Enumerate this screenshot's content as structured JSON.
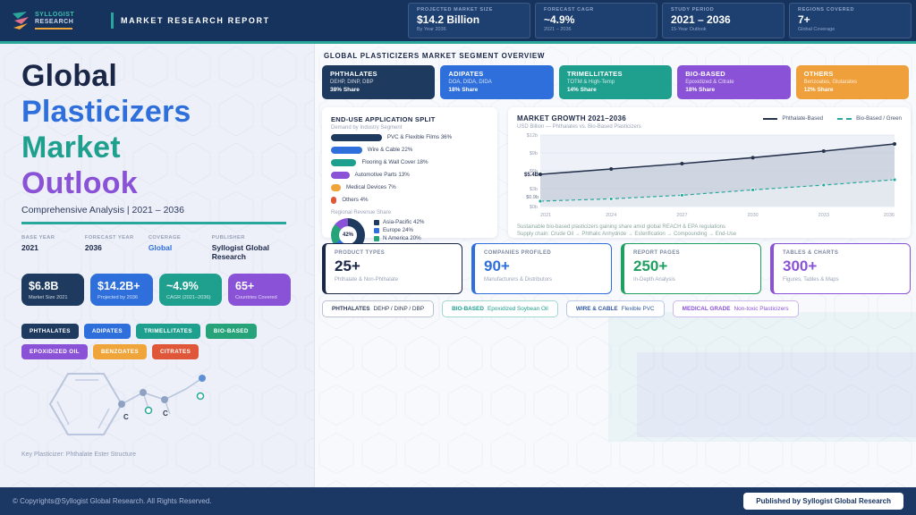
{
  "palette": {
    "navy": "#1e3a5f",
    "blue": "#2f6fdb",
    "teal": "#1fa08f",
    "green": "#27a37a",
    "purple": "#8a52d7",
    "amber": "#f0a53a",
    "orange": "#f0a03a",
    "red": "#e05638",
    "accent": "#2aa79b",
    "header_bg": "#16335e"
  },
  "header": {
    "logo": {
      "line1": "SYLLOGIST",
      "line2": "RESEARCH"
    },
    "report_label": "MARKET RESEARCH REPORT",
    "cards": [
      {
        "label": "PROJECTED MARKET SIZE",
        "value": "$14.2 Billion",
        "sub": "By Year 2036"
      },
      {
        "label": "FORECAST CAGR",
        "value": "~4.9%",
        "sub": "2021 – 2036"
      },
      {
        "label": "STUDY PERIOD",
        "value": "2021 – 2036",
        "sub": "15-Year Outlook"
      },
      {
        "label": "REGIONS COVERED",
        "value": "7+",
        "sub": "Global Coverage"
      }
    ]
  },
  "hero": {
    "title_lines": [
      {
        "text": "Global",
        "color": "#1b2747"
      },
      {
        "text": "Plasticizers",
        "color": "#2f6fdb"
      },
      {
        "text": "Market",
        "color": "#1fa08f"
      },
      {
        "text": "Outlook",
        "color": "#8a52d7"
      }
    ],
    "subtitle": "Comprehensive Analysis  |  2021 – 2036",
    "meta": [
      {
        "label": "BASE YEAR",
        "value": "2021"
      },
      {
        "label": "FORECAST YEAR",
        "value": "2036"
      },
      {
        "label": "COVERAGE",
        "value": "Global"
      },
      {
        "label": "PUBLISHER",
        "value": "Syllogist Global Research"
      }
    ],
    "stats": [
      {
        "value": "$6.8B",
        "label": "Market Size 2021",
        "bg": "#1e3a5f"
      },
      {
        "value": "$14.2B+",
        "label": "Projected by 2036",
        "bg": "#2f6fdb"
      },
      {
        "value": "~4.9%",
        "label": "CAGR (2021–2036)",
        "bg": "#1fa08f"
      },
      {
        "value": "65+",
        "label": "Countries Covered",
        "bg": "#8a52d7"
      }
    ],
    "tags": [
      {
        "label": "PHTHALATES",
        "bg": "#1e3a5f"
      },
      {
        "label": "ADIPATES",
        "bg": "#2f6fdb"
      },
      {
        "label": "TRIMELLITATES",
        "bg": "#1fa08f"
      },
      {
        "label": "BIO-BASED",
        "bg": "#27a37a"
      },
      {
        "label": "EPOXIDIZED OIL",
        "bg": "#8a52d7"
      },
      {
        "label": "BENZOATES",
        "bg": "#f0a53a"
      },
      {
        "label": "CITRATES",
        "bg": "#e05638"
      }
    ],
    "molecule": {
      "caption": "Key Plasticizer: Phthalate Ester Structure",
      "atom1": "C",
      "atom2": "C"
    }
  },
  "overview": {
    "section_title": "GLOBAL PLASTICIZERS MARKET SEGMENT OVERVIEW",
    "segments": [
      {
        "title": "PHTHALATES",
        "sub": "DEHP, DINP, DBP",
        "share": "38% Share",
        "bg": "#1e3a5f"
      },
      {
        "title": "ADIPATES",
        "sub": "DOA, DIDA, DIDA",
        "share": "18% Share",
        "bg": "#2f6fdb"
      },
      {
        "title": "TRIMELLITATES",
        "sub": "TOTM & High-Temp",
        "share": "14% Share",
        "bg": "#1fa08f"
      },
      {
        "title": "BIO-BASED",
        "sub": "Epoxidized & Citrate",
        "share": "18% Share",
        "bg": "#8a52d7"
      },
      {
        "title": "OTHERS",
        "sub": "Benzoates, Glutarates",
        "share": "12% Share",
        "bg": "#f0a03a"
      }
    ]
  },
  "chart_data": [
    {
      "type": "bar",
      "title": "END-USE APPLICATION SPLIT",
      "subtitle": "Demand by Industry Segment",
      "categories": [
        "PVC & Flexible Films",
        "Wire & Cable",
        "Flooring & Wall Cover",
        "Automotive Parts",
        "Medical Devices",
        "Others"
      ],
      "values": [
        36,
        22,
        18,
        13,
        7,
        4
      ],
      "unit": "%",
      "colors": [
        "#1e3a5f",
        "#2f6fdb",
        "#1fa08f",
        "#8a52d7",
        "#f0a53a",
        "#e05638"
      ],
      "orientation": "horizontal"
    },
    {
      "type": "pie",
      "title": "Regional Revenue Share",
      "center_label": "42%",
      "categories": [
        "Asia-Pacific",
        "Europe",
        "N America",
        "Rest"
      ],
      "values": [
        42,
        24,
        20,
        14
      ],
      "unit": "%",
      "colors": [
        "#1e3a5f",
        "#2f6fdb",
        "#27a37a",
        "#8a52d7"
      ],
      "legend_position": "right"
    },
    {
      "type": "line",
      "title": "MARKET GROWTH 2021–2036",
      "subtitle": "USD Billion — Phthalates vs. Bio-Based Plasticizers",
      "x": [
        2021,
        2024,
        2027,
        2030,
        2033,
        2036
      ],
      "series": [
        {
          "name": "Phthalate-Based",
          "values": [
            5.4,
            6.3,
            7.2,
            8.2,
            9.3,
            10.5
          ],
          "color": "#26334d",
          "style": "solid",
          "area": true,
          "start_label": "$5.4B"
        },
        {
          "name": "Bio-Based / Green",
          "values": [
            0.9,
            1.3,
            1.9,
            2.8,
            3.6,
            4.5
          ],
          "color": "#2aa79b",
          "style": "dashed",
          "area": false,
          "start_label": "$0.9b"
        }
      ],
      "ylim": [
        0,
        12
      ],
      "ytick_values": [
        0,
        3,
        6,
        9,
        12
      ],
      "ytick_labels": [
        "$0b",
        "$3b",
        "$6b",
        "$9b",
        "$12b"
      ],
      "grid": true,
      "legend_position": "top-right",
      "notes": [
        "Sustainable bio-based plasticizers gaining share amid global REACH & EPA regulations",
        "Supply chain: Crude Oil → Phthalic Anhydride → Esterification → Compounding → End-Use"
      ]
    }
  ],
  "report_stats": [
    {
      "label": "PRODUCT TYPES",
      "value": "25+",
      "sub": "Phthalate & Non-Phthalate",
      "color": "#1b2747"
    },
    {
      "label": "COMPANIES PROFILED",
      "value": "90+",
      "sub": "Manufacturers & Distributors",
      "color": "#2f6fdb"
    },
    {
      "label": "REPORT PAGES",
      "value": "250+",
      "sub": "In-Depth Analysis",
      "color": "#1fa060"
    },
    {
      "label": "TABLES & CHARTS",
      "value": "300+",
      "sub": "Figures, Tables & Maps",
      "color": "#8a52d7"
    }
  ],
  "highlight_pills": [
    {
      "label": "PHTHALATES",
      "value": "DEHP / DINP / DBP",
      "color": "#2c3a57"
    },
    {
      "label": "BIO-BASED",
      "value": "Epoxidized Soybean Oil",
      "color": "#1fa08f"
    },
    {
      "label": "WIRE & CABLE",
      "value": "Flexible PVC",
      "color": "#31599f"
    },
    {
      "label": "MEDICAL GRADE",
      "value": "Non-toxic Plasticizers",
      "color": "#8a52d7"
    }
  ],
  "footer": {
    "copyright": "© Copyrights@Syllogist Global Research. All Rights Reserved.",
    "published": "Published by Syllogist Global Research"
  }
}
